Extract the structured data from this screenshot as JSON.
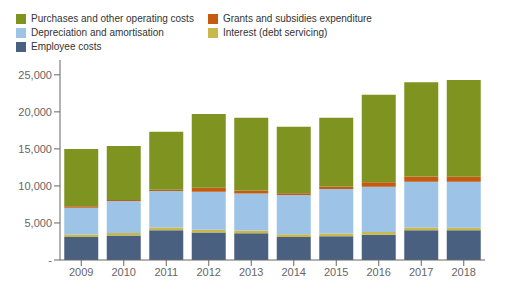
{
  "chart_data": {
    "type": "bar",
    "stacked": true,
    "grid": false,
    "legend": "top",
    "categories": [
      "2009",
      "2010",
      "2011",
      "2012",
      "2013",
      "2014",
      "2015",
      "2016",
      "2017",
      "2018"
    ],
    "series": [
      {
        "name": "Employee costs",
        "color": "#4a6080",
        "values": [
          3100,
          3300,
          4000,
          3700,
          3600,
          3100,
          3200,
          3400,
          4000,
          4000
        ]
      },
      {
        "name": "Interest (debt servicing)",
        "color": "#c9b84c",
        "values": [
          350,
          350,
          400,
          400,
          380,
          370,
          380,
          380,
          380,
          370
        ]
      },
      {
        "name": "Depreciation and amortisation",
        "color": "#9dc3e6",
        "values": [
          3600,
          4300,
          4900,
          5100,
          5000,
          5300,
          6000,
          6100,
          6200,
          6200
        ]
      },
      {
        "name": "Grants and subsidies expenditure",
        "color": "#c55a11",
        "values": [
          200,
          150,
          200,
          550,
          400,
          230,
          350,
          600,
          700,
          680
        ]
      },
      {
        "name": "Purchases and other operating costs",
        "color": "#7f9320",
        "values": [
          7750,
          7300,
          7800,
          9950,
          9820,
          9000,
          9270,
          11820,
          12720,
          13050
        ]
      }
    ],
    "ylim": [
      0,
      27000
    ],
    "yticks": [
      {
        "value": 0,
        "label": "-"
      },
      {
        "value": 5000,
        "label": "5,000"
      },
      {
        "value": 10000,
        "label": "10,000"
      },
      {
        "value": 15000,
        "label": "15,000"
      },
      {
        "value": 20000,
        "label": "20,000"
      },
      {
        "value": 25000,
        "label": "25,000"
      }
    ]
  }
}
